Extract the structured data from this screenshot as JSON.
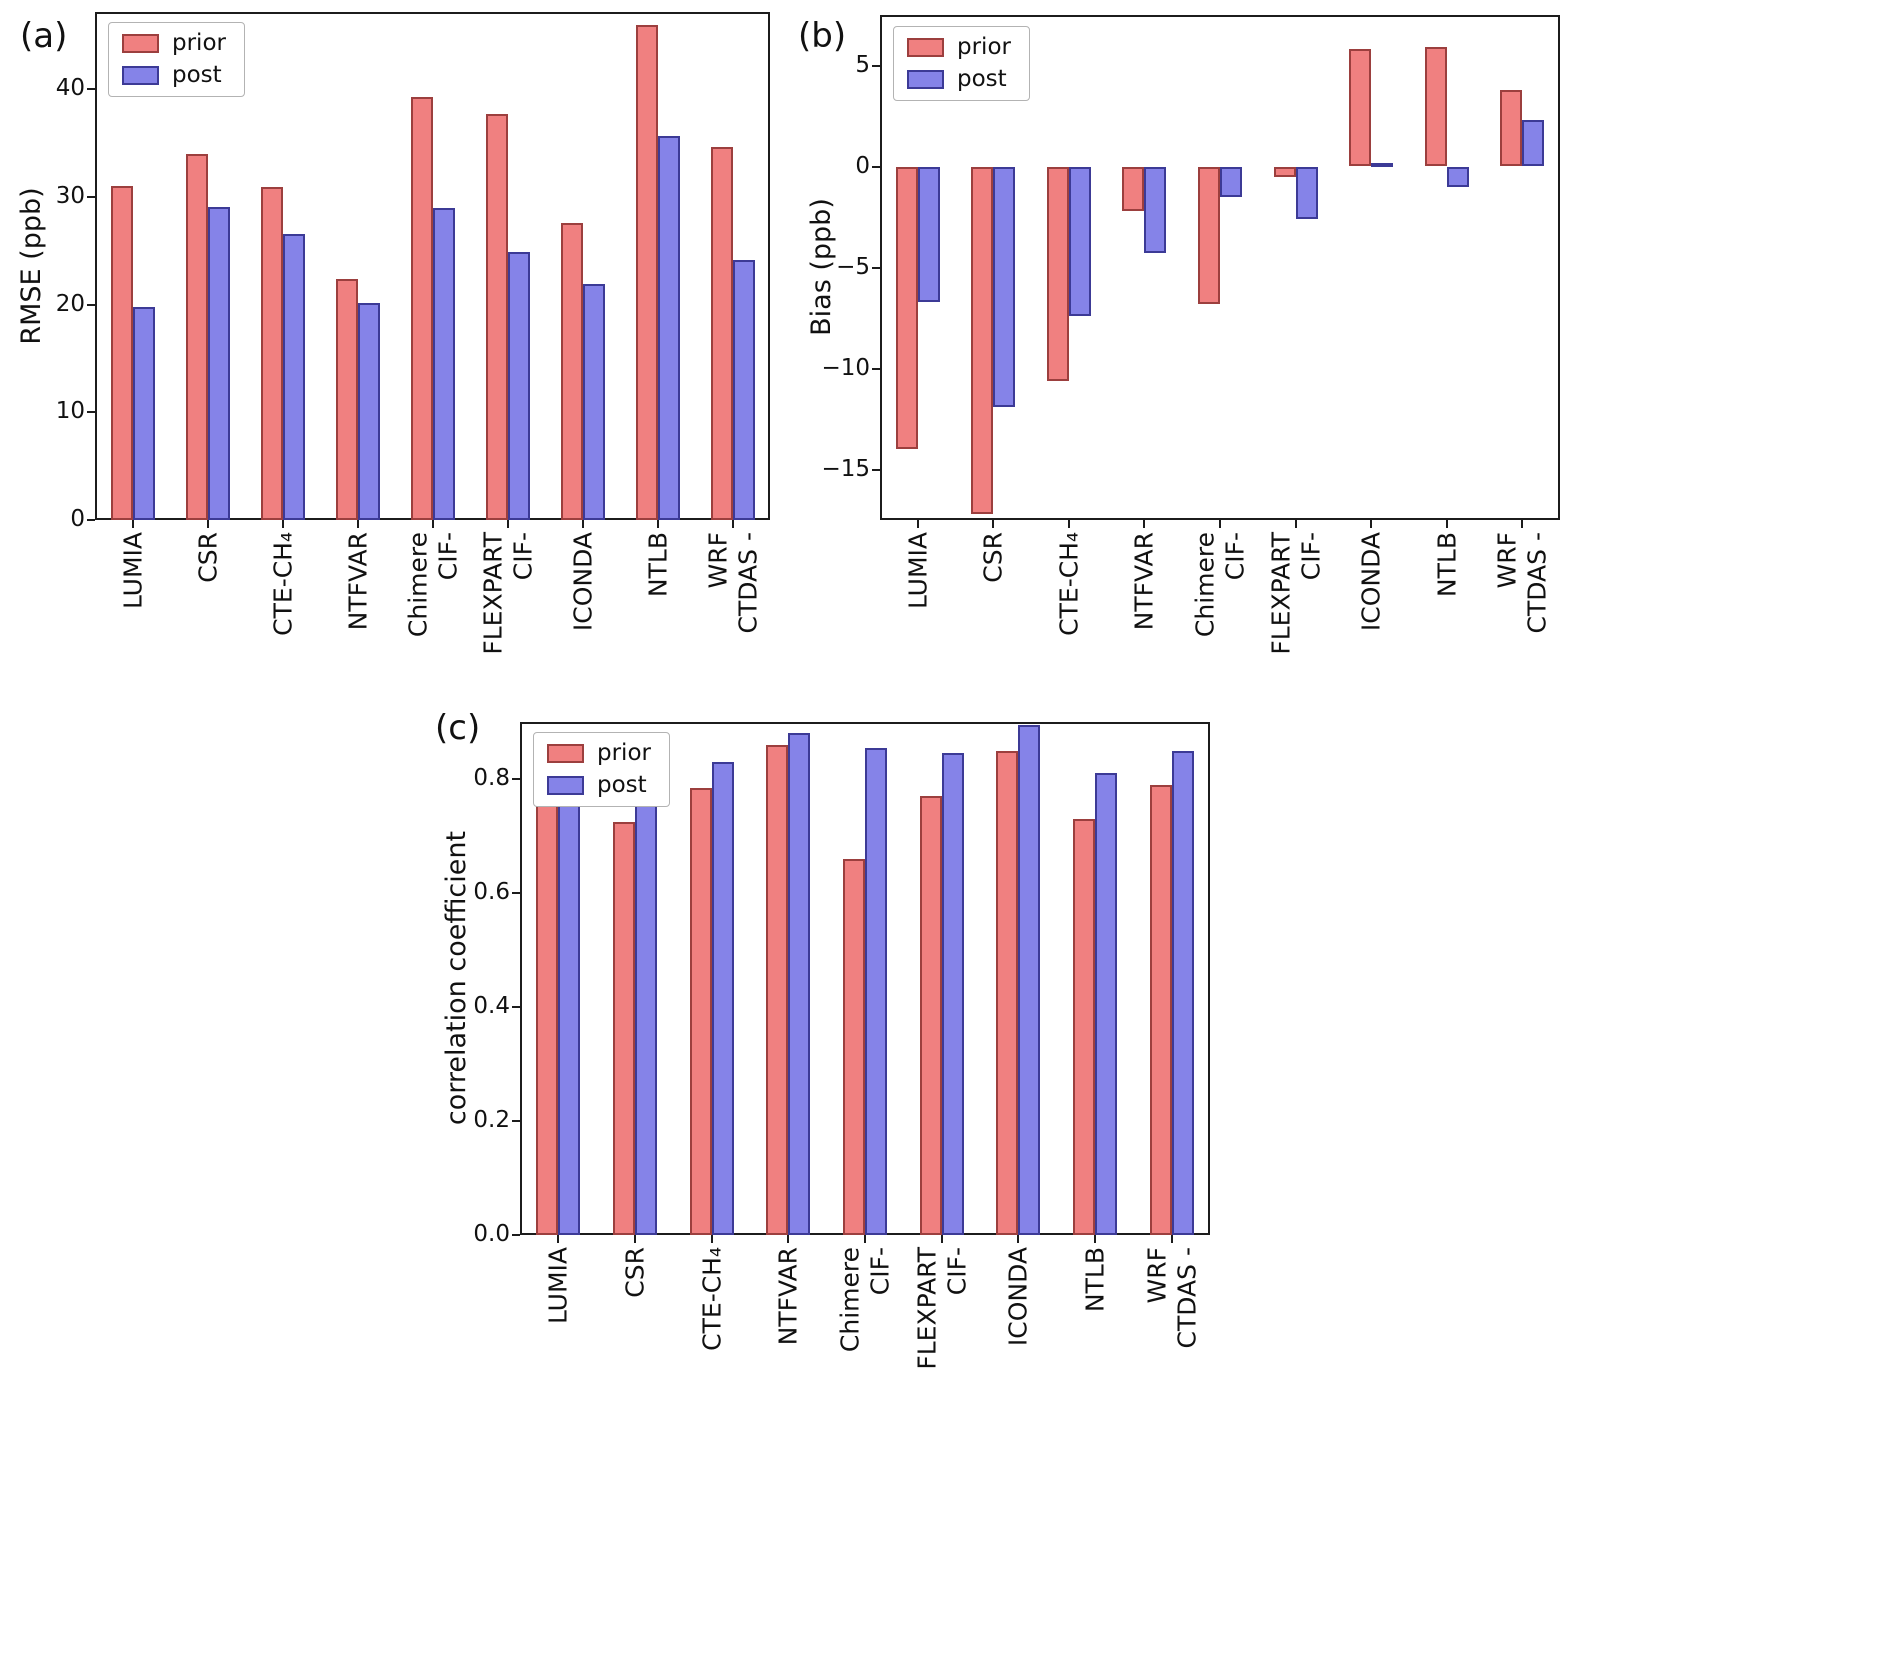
{
  "colors": {
    "prior": {
      "fill": "#f08080",
      "edge": "#9c3f3e"
    },
    "post": {
      "fill": "#8583e8",
      "edge": "#3c3a96"
    },
    "axis": "#1c1c1c"
  },
  "chart_data": [
    {
      "type": "bar",
      "panel_letter": "(a)",
      "title": "",
      "xlabel": "",
      "ylabel": "RMSE (ppb)",
      "ylim": [
        0,
        47.2
      ],
      "grid": false,
      "legend_position": "upper left",
      "yticks": [
        {
          "value": 0,
          "label": "0"
        },
        {
          "value": 10,
          "label": "10"
        },
        {
          "value": 20,
          "label": "20"
        },
        {
          "value": 30,
          "label": "30"
        },
        {
          "value": 40,
          "label": "40"
        }
      ],
      "categories": [
        "LUMIA",
        "CSR",
        "CTE-CH4",
        "NTFVAR",
        "CIF-Chimere",
        "CIF-FLEXPART",
        "ICONDA",
        "NTLB",
        "CTDAS-WRF"
      ],
      "category_display_lines": [
        [
          "LUMIA"
        ],
        [
          "CSR"
        ],
        [
          "CTE-CH₄"
        ],
        [
          "NTFVAR"
        ],
        [
          "Chimere",
          "CIF-"
        ],
        [
          "FLEXPART",
          "CIF-"
        ],
        [
          "ICONDA"
        ],
        [
          "NTLB"
        ],
        [
          "WRF",
          "CTDAS -"
        ]
      ],
      "series": [
        {
          "name": "prior",
          "values": [
            31.0,
            34.0,
            30.9,
            22.4,
            39.3,
            37.7,
            27.6,
            46.0,
            34.7
          ]
        },
        {
          "name": "post",
          "values": [
            19.8,
            29.1,
            26.6,
            20.2,
            29.0,
            24.9,
            21.9,
            35.7,
            24.2
          ]
        }
      ]
    },
    {
      "type": "bar",
      "panel_letter": "(b)",
      "title": "",
      "xlabel": "",
      "ylabel": "Bias (ppb)",
      "ylim": [
        -17.5,
        7.5
      ],
      "grid": false,
      "legend_position": "upper left",
      "yticks": [
        {
          "value": 5,
          "label": "5"
        },
        {
          "value": 0,
          "label": "0"
        },
        {
          "value": -5,
          "label": "−5"
        },
        {
          "value": -10,
          "label": "−10"
        },
        {
          "value": -15,
          "label": "−15"
        }
      ],
      "categories": [
        "LUMIA",
        "CSR",
        "CTE-CH4",
        "NTFVAR",
        "CIF-Chimere",
        "CIF-FLEXPART",
        "ICONDA",
        "NTLB",
        "CTDAS-WRF"
      ],
      "category_display_lines": [
        [
          "LUMIA"
        ],
        [
          "CSR"
        ],
        [
          "CTE-CH₄"
        ],
        [
          "NTFVAR"
        ],
        [
          "Chimere",
          "CIF-"
        ],
        [
          "FLEXPART",
          "CIF-"
        ],
        [
          "ICONDA"
        ],
        [
          "NTLB"
        ],
        [
          "WRF",
          "CTDAS -"
        ]
      ],
      "series": [
        {
          "name": "prior",
          "values": [
            -14.0,
            -17.2,
            -10.6,
            -2.2,
            -6.8,
            -0.5,
            5.8,
            5.9,
            3.8
          ]
        },
        {
          "name": "post",
          "values": [
            -6.7,
            -11.9,
            -7.4,
            -4.3,
            -1.5,
            -2.6,
            0.15,
            -1.0,
            2.3
          ]
        }
      ]
    },
    {
      "type": "bar",
      "panel_letter": "(c)",
      "title": "",
      "xlabel": "",
      "ylabel": "correlation coefficient",
      "ylim": [
        0,
        0.9
      ],
      "grid": false,
      "legend_position": "upper left",
      "yticks": [
        {
          "value": 0.0,
          "label": "0.0"
        },
        {
          "value": 0.2,
          "label": "0.2"
        },
        {
          "value": 0.4,
          "label": "0.4"
        },
        {
          "value": 0.6,
          "label": "0.6"
        },
        {
          "value": 0.8,
          "label": "0.8"
        }
      ],
      "categories": [
        "LUMIA",
        "CSR",
        "CTE-CH4",
        "NTFVAR",
        "CIF-Chimere",
        "CIF-FLEXPART",
        "ICONDA",
        "NTLB",
        "CTDAS-WRF"
      ],
      "category_display_lines": [
        [
          "LUMIA"
        ],
        [
          "CSR"
        ],
        [
          "CTE-CH₄"
        ],
        [
          "NTFVAR"
        ],
        [
          "Chimere",
          "CIF-"
        ],
        [
          "FLEXPART",
          "CIF-"
        ],
        [
          "ICONDA"
        ],
        [
          "NTLB"
        ],
        [
          "WRF",
          "CTDAS -"
        ]
      ],
      "series": [
        {
          "name": "prior",
          "values": [
            0.785,
            0.725,
            0.785,
            0.86,
            0.66,
            0.77,
            0.85,
            0.73,
            0.79
          ]
        },
        {
          "name": "post",
          "values": [
            0.87,
            0.76,
            0.83,
            0.88,
            0.855,
            0.845,
            0.895,
            0.81,
            0.85
          ]
        }
      ]
    }
  ]
}
